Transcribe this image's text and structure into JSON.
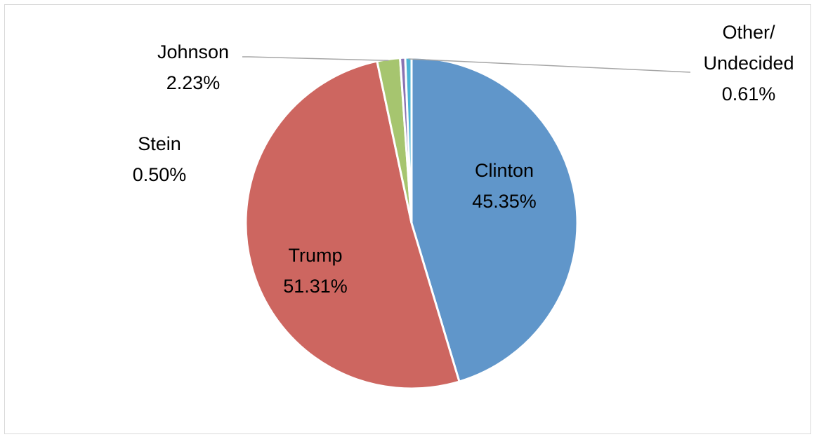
{
  "chart_data": {
    "type": "pie",
    "title": "",
    "slices": [
      {
        "name": "Clinton",
        "value": 45.35,
        "value_label": "45.35%",
        "color": "#6096ca"
      },
      {
        "name": "Trump",
        "value": 51.31,
        "value_label": "51.31%",
        "color": "#cd6660"
      },
      {
        "name": "Johnson",
        "value": 2.23,
        "value_label": "2.23%",
        "color": "#a6c56f"
      },
      {
        "name": "Stein",
        "value": 0.5,
        "value_label": "0.50%",
        "color": "#8a73b2"
      },
      {
        "name_lines": [
          "Other/",
          "Undecided"
        ],
        "value": 0.61,
        "value_label": "0.61%",
        "color": "#4bb4d6"
      }
    ],
    "start_angle_deg": 0,
    "direction": "clockwise",
    "legend": "none"
  }
}
